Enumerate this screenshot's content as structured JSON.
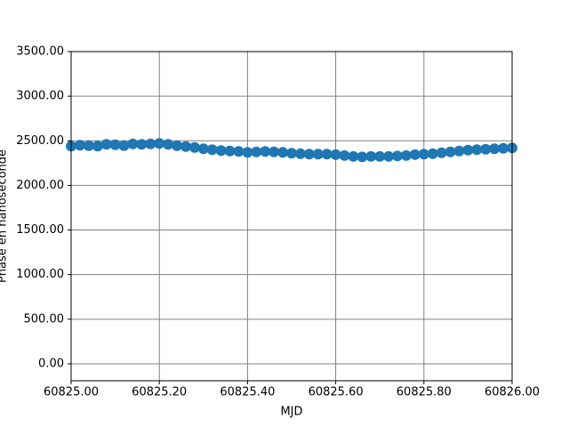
{
  "chart_data": {
    "type": "scatter",
    "x_label": "MJD",
    "y_label": "Phase en nanoseconde",
    "x": [
      60825.0,
      60825.02,
      60825.04,
      60825.06,
      60825.08,
      60825.1,
      60825.12,
      60825.14,
      60825.16,
      60825.18,
      60825.2,
      60825.22,
      60825.24,
      60825.26,
      60825.28,
      60825.3,
      60825.32,
      60825.34,
      60825.36,
      60825.38,
      60825.4,
      60825.42,
      60825.44,
      60825.46,
      60825.48,
      60825.5,
      60825.52,
      60825.54,
      60825.56,
      60825.58,
      60825.6,
      60825.62,
      60825.64,
      60825.66,
      60825.68,
      60825.7,
      60825.72,
      60825.74,
      60825.76,
      60825.78,
      60825.8,
      60825.82,
      60825.84,
      60825.86,
      60825.88,
      60825.9,
      60825.92,
      60825.94,
      60825.96,
      60825.98,
      60826.0
    ],
    "series": [
      {
        "color": "#1f77b4",
        "values": [
          2440,
          2450,
          2445,
          2440,
          2460,
          2455,
          2445,
          2465,
          2460,
          2465,
          2470,
          2460,
          2445,
          2435,
          2425,
          2410,
          2400,
          2390,
          2385,
          2380,
          2370,
          2375,
          2380,
          2375,
          2370,
          2360,
          2355,
          2350,
          2350,
          2350,
          2345,
          2335,
          2325,
          2320,
          2325,
          2325,
          2325,
          2330,
          2335,
          2345,
          2350,
          2355,
          2365,
          2375,
          2385,
          2395,
          2400,
          2405,
          2410,
          2415,
          2420
        ]
      }
    ],
    "xlim": [
      60825.0,
      60826.0
    ],
    "xticks": [
      {
        "value": 60825.0,
        "label": "60825.00"
      },
      {
        "value": 60825.2,
        "label": "60825.20"
      },
      {
        "value": 60825.4,
        "label": "60825.40"
      },
      {
        "value": 60825.6,
        "label": "60825.60"
      },
      {
        "value": 60825.8,
        "label": "60825.80"
      },
      {
        "value": 60826.0,
        "label": "60826.00"
      }
    ],
    "ylim": [
      -190,
      3500
    ],
    "yticks": [
      {
        "value": 0,
        "label": "0.00"
      },
      {
        "value": 500,
        "label": "500.00"
      },
      {
        "value": 1000,
        "label": "1000.00"
      },
      {
        "value": 1500,
        "label": "1500.00"
      },
      {
        "value": 2000,
        "label": "2000.00"
      },
      {
        "value": 2500,
        "label": "2500.00"
      },
      {
        "value": 3000,
        "label": "3000.00"
      },
      {
        "value": 3500,
        "label": "3500.00"
      }
    ],
    "grid": true
  }
}
